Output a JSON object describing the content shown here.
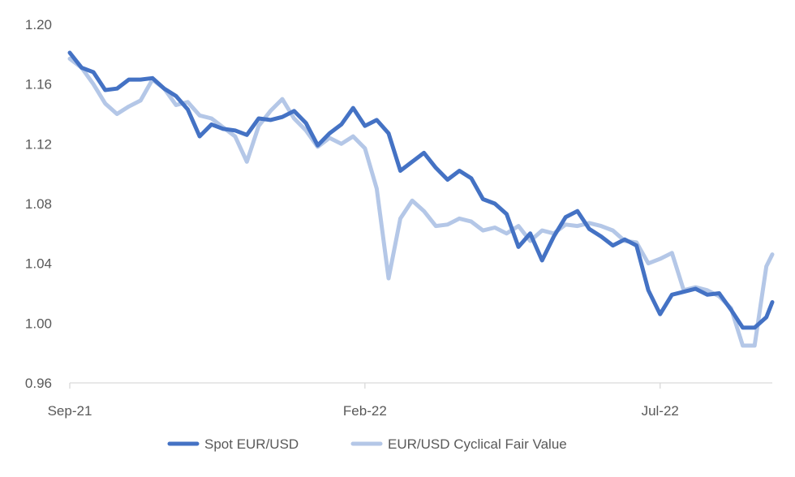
{
  "chart_data": {
    "type": "line",
    "title": "",
    "xlabel": "",
    "ylabel": "",
    "ylim": [
      0.96,
      1.2
    ],
    "yticks": [
      "0.96",
      "1.00",
      "1.04",
      "1.08",
      "1.12",
      "1.16",
      "1.20"
    ],
    "ytick_values": [
      0.96,
      1.0,
      1.04,
      1.08,
      1.12,
      1.16,
      1.2
    ],
    "x_categories": [
      "Sep-21",
      "Feb-22",
      "Jul-22"
    ],
    "x_range_months": [
      0,
      11.9
    ],
    "x_tick_positions_months": [
      0,
      5,
      10
    ],
    "grid": false,
    "legend_position": "bottom",
    "series": [
      {
        "name": "Spot EUR/USD",
        "color": "#4472C4",
        "x": [
          0,
          0.2,
          0.4,
          0.6,
          0.8,
          1.0,
          1.2,
          1.4,
          1.6,
          1.8,
          2.0,
          2.2,
          2.4,
          2.6,
          2.8,
          3.0,
          3.2,
          3.4,
          3.6,
          3.8,
          4.0,
          4.2,
          4.4,
          4.6,
          4.8,
          5.0,
          5.2,
          5.4,
          5.6,
          5.8,
          6.0,
          6.2,
          6.4,
          6.6,
          6.8,
          7.0,
          7.2,
          7.4,
          7.6,
          7.8,
          8.0,
          8.2,
          8.4,
          8.6,
          8.8,
          9.0,
          9.2,
          9.4,
          9.6,
          9.8,
          10.0,
          10.2,
          10.4,
          10.6,
          10.8,
          11.0,
          11.2,
          11.4,
          11.6,
          11.8,
          11.9
        ],
        "values": [
          1.181,
          1.171,
          1.168,
          1.156,
          1.157,
          1.163,
          1.163,
          1.164,
          1.157,
          1.152,
          1.143,
          1.125,
          1.133,
          1.13,
          1.129,
          1.126,
          1.137,
          1.136,
          1.138,
          1.142,
          1.134,
          1.119,
          1.127,
          1.133,
          1.144,
          1.132,
          1.136,
          1.127,
          1.102,
          1.108,
          1.114,
          1.104,
          1.096,
          1.102,
          1.097,
          1.083,
          1.08,
          1.073,
          1.051,
          1.06,
          1.042,
          1.058,
          1.071,
          1.075,
          1.063,
          1.058,
          1.052,
          1.056,
          1.052,
          1.022,
          1.006,
          1.019,
          1.021,
          1.023,
          1.019,
          1.02,
          1.009,
          0.997,
          0.997,
          1.004,
          1.014
        ]
      },
      {
        "name": "EUR/USD Cyclical Fair Value",
        "color": "#B4C7E7",
        "x": [
          0,
          0.2,
          0.4,
          0.6,
          0.8,
          1.0,
          1.2,
          1.4,
          1.6,
          1.8,
          2.0,
          2.2,
          2.4,
          2.6,
          2.8,
          3.0,
          3.2,
          3.4,
          3.6,
          3.8,
          4.0,
          4.2,
          4.4,
          4.6,
          4.8,
          5.0,
          5.2,
          5.4,
          5.6,
          5.8,
          6.0,
          6.2,
          6.4,
          6.6,
          6.8,
          7.0,
          7.2,
          7.4,
          7.6,
          7.8,
          8.0,
          8.2,
          8.4,
          8.6,
          8.8,
          9.0,
          9.2,
          9.4,
          9.6,
          9.8,
          10.0,
          10.2,
          10.4,
          10.6,
          10.8,
          11.0,
          11.2,
          11.4,
          11.6,
          11.8,
          11.9
        ],
        "values": [
          1.177,
          1.171,
          1.16,
          1.147,
          1.14,
          1.145,
          1.149,
          1.163,
          1.157,
          1.146,
          1.148,
          1.139,
          1.137,
          1.131,
          1.125,
          1.108,
          1.132,
          1.142,
          1.15,
          1.137,
          1.129,
          1.118,
          1.124,
          1.12,
          1.125,
          1.117,
          1.09,
          1.03,
          1.07,
          1.082,
          1.075,
          1.065,
          1.066,
          1.07,
          1.068,
          1.062,
          1.064,
          1.06,
          1.065,
          1.055,
          1.062,
          1.06,
          1.066,
          1.065,
          1.067,
          1.065,
          1.062,
          1.055,
          1.054,
          1.04,
          1.043,
          1.047,
          1.022,
          1.024,
          1.022,
          1.018,
          1.01,
          0.985,
          0.985,
          1.038,
          1.046
        ]
      }
    ]
  }
}
